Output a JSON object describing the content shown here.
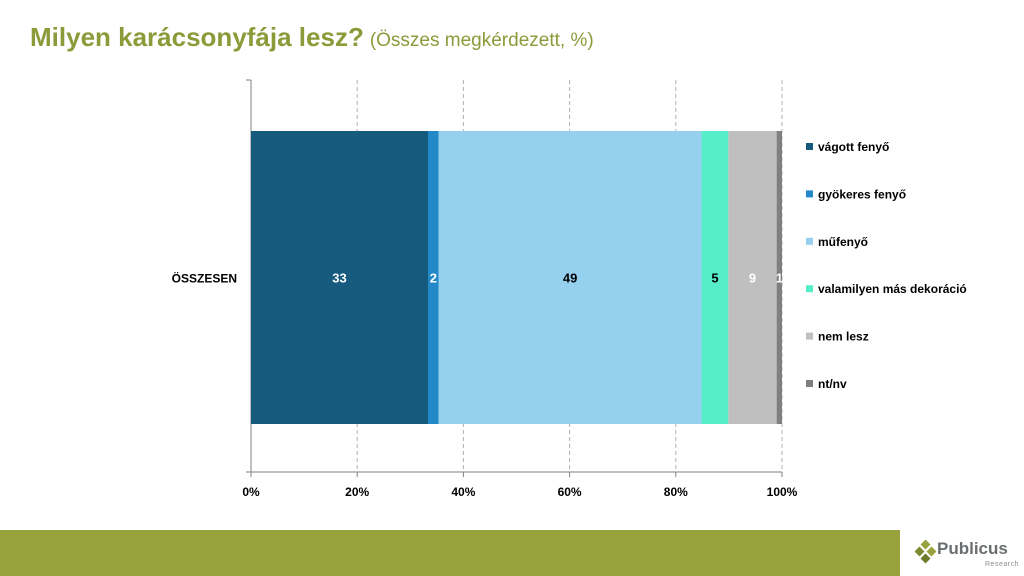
{
  "title": {
    "main": "Milyen karácsonyfája lesz?",
    "sub": "(Összes megkérdezett, %)"
  },
  "chart_data": {
    "type": "bar",
    "orientation": "horizontal",
    "stacked": "percent",
    "categories": [
      "ÖSSZESEN"
    ],
    "series": [
      {
        "name": "vágott fenyő",
        "values": [
          33
        ],
        "color": "#165a7e",
        "label_color": "#ffffff"
      },
      {
        "name": "gyökeres fenyő",
        "values": [
          2
        ],
        "color": "#2288c8",
        "label_color": "#ffffff"
      },
      {
        "name": "műfenyő",
        "values": [
          49
        ],
        "color": "#95d0ee",
        "label_color": "#000000"
      },
      {
        "name": "valamilyen más dekoráció",
        "values": [
          5
        ],
        "color": "#55eec8",
        "label_color": "#000000"
      },
      {
        "name": "nem lesz",
        "values": [
          9
        ],
        "color": "#bfbfbf",
        "label_color": "#ffffff"
      },
      {
        "name": "nt/nv",
        "values": [
          1
        ],
        "color": "#7f7f7f",
        "label_color": "#ffffff"
      }
    ],
    "xlim": [
      0,
      100
    ],
    "xticks": [
      "0%",
      "20%",
      "40%",
      "60%",
      "80%",
      "100%"
    ],
    "grid": "vertical dashed",
    "legend": "right"
  },
  "logo": {
    "name": "Publicus",
    "sub": "Research"
  }
}
